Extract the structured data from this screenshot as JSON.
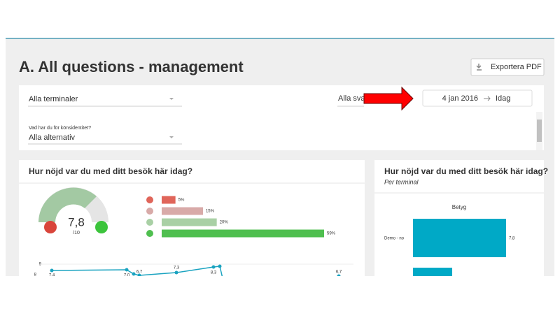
{
  "header": {
    "title": "A. All questions - management",
    "export_button": "Exportera PDF"
  },
  "filters": {
    "terminal": "Alla terminaler",
    "answers": "Alla svar",
    "date_from": "4 jan 2016",
    "date_to": "Idag",
    "gender_label": "Vad har du för könsidentitet?",
    "gender_value": "Alla alternativ"
  },
  "left_card": {
    "title": "Hur nöjd var du med ditt besök här idag?",
    "score": "7,8",
    "score_max": "/10",
    "breakdown": {
      "values": [
        5,
        15,
        20,
        59
      ],
      "value_labels": [
        "5%",
        "15%",
        "20%",
        "59%"
      ],
      "colors": [
        "#e0655a",
        "#d8aaa8",
        "#a9d0a5",
        "#4fbf4f"
      ]
    },
    "trend": {
      "yticks": [
        "9",
        "8"
      ],
      "point_labels": [
        "7,4",
        "7,0",
        "6,7",
        "7,3",
        "8,3",
        "6,7"
      ]
    }
  },
  "right_card": {
    "title": "Hur nöjd var du med ditt besök här idag?",
    "subtitle": "Per terminal",
    "chart_title": "Betyg",
    "category": "Demo - no",
    "value_label": "7,8"
  }
}
